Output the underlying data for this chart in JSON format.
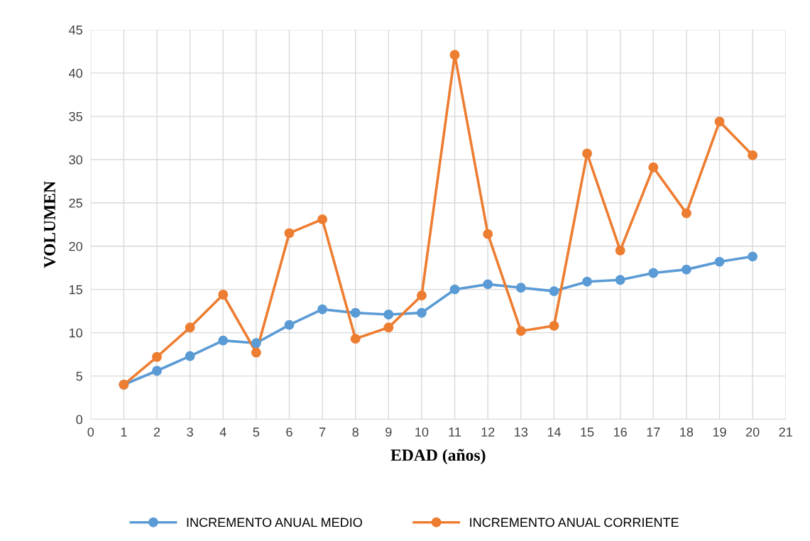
{
  "chart_data": {
    "type": "line",
    "xlabel": "EDAD (años)",
    "ylabel": "VOLUMEN",
    "x": [
      1,
      2,
      3,
      4,
      5,
      6,
      7,
      8,
      9,
      10,
      11,
      12,
      13,
      14,
      15,
      16,
      17,
      18,
      19,
      20
    ],
    "series": [
      {
        "name": "INCREMENTO ANUAL MEDIO",
        "color": "#5b9bd5",
        "values": [
          4.0,
          5.6,
          7.3,
          9.1,
          8.8,
          10.9,
          12.7,
          12.3,
          12.1,
          12.3,
          15.0,
          15.6,
          15.2,
          14.8,
          15.9,
          16.1,
          16.9,
          17.3,
          18.2,
          18.8
        ]
      },
      {
        "name": "INCREMENTO ANUAL CORRIENTE",
        "color": "#ed7d31",
        "values": [
          4.0,
          7.2,
          10.6,
          14.4,
          7.7,
          21.5,
          23.1,
          9.3,
          10.6,
          14.3,
          42.1,
          21.4,
          10.2,
          10.8,
          30.7,
          19.5,
          29.1,
          23.8,
          34.4,
          30.5
        ]
      }
    ],
    "xlim": [
      0,
      21
    ],
    "xticks": [
      0,
      1,
      2,
      3,
      4,
      5,
      6,
      7,
      8,
      9,
      10,
      11,
      12,
      13,
      14,
      15,
      16,
      17,
      18,
      19,
      20,
      21
    ],
    "ylim": [
      0,
      45
    ],
    "yticks": [
      0,
      5,
      10,
      15,
      20,
      25,
      30,
      35,
      40,
      45
    ],
    "grid": true,
    "legend": "bottom",
    "marker": "circle",
    "line_style": "solid"
  }
}
